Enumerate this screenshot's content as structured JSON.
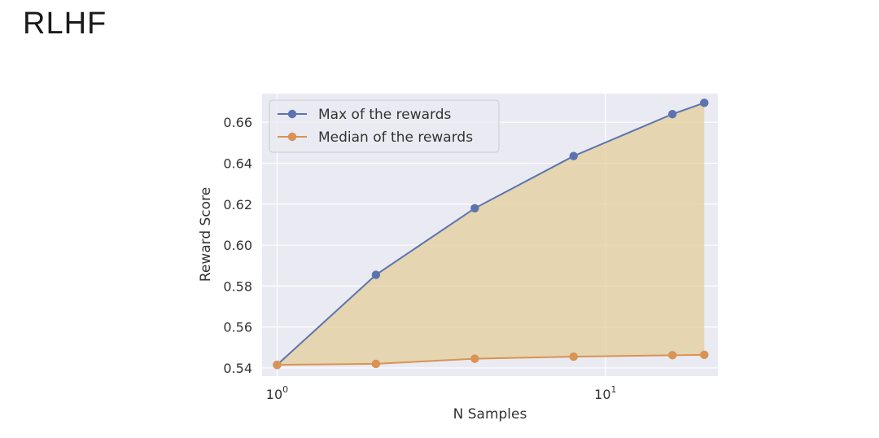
{
  "slide": {
    "title": "RLHF"
  },
  "chart_data": {
    "type": "line",
    "x": [
      1,
      2,
      4,
      8,
      16,
      20
    ],
    "xscale": "log",
    "xlim": [
      0.9,
      22
    ],
    "xtick_labels": [
      {
        "value": 1,
        "base": "10",
        "exp": "0"
      },
      {
        "value": 10,
        "base": "10",
        "exp": "1"
      }
    ],
    "xlabel": "N Samples",
    "ylabel": "Reward Score",
    "ylim": [
      0.536,
      0.674
    ],
    "yticks": [
      0.54,
      0.56,
      0.58,
      0.6,
      0.62,
      0.64,
      0.66
    ],
    "ytick_labels": [
      "0.54",
      "0.56",
      "0.58",
      "0.60",
      "0.62",
      "0.64",
      "0.66"
    ],
    "series": [
      {
        "name": "Max of the rewards",
        "values": [
          0.5415,
          0.5855,
          0.618,
          0.6435,
          0.664,
          0.6695
        ],
        "color": "#5b74b0"
      },
      {
        "name": "Median of the rewards",
        "values": [
          0.5415,
          0.542,
          0.5445,
          0.5455,
          0.5462,
          0.5464
        ],
        "color": "#d99354"
      }
    ],
    "fill_between": {
      "color": "#e2c98e",
      "opacity": 0.65
    },
    "legend_position": "top-left",
    "grid": true,
    "background": "#eaeaf2"
  }
}
